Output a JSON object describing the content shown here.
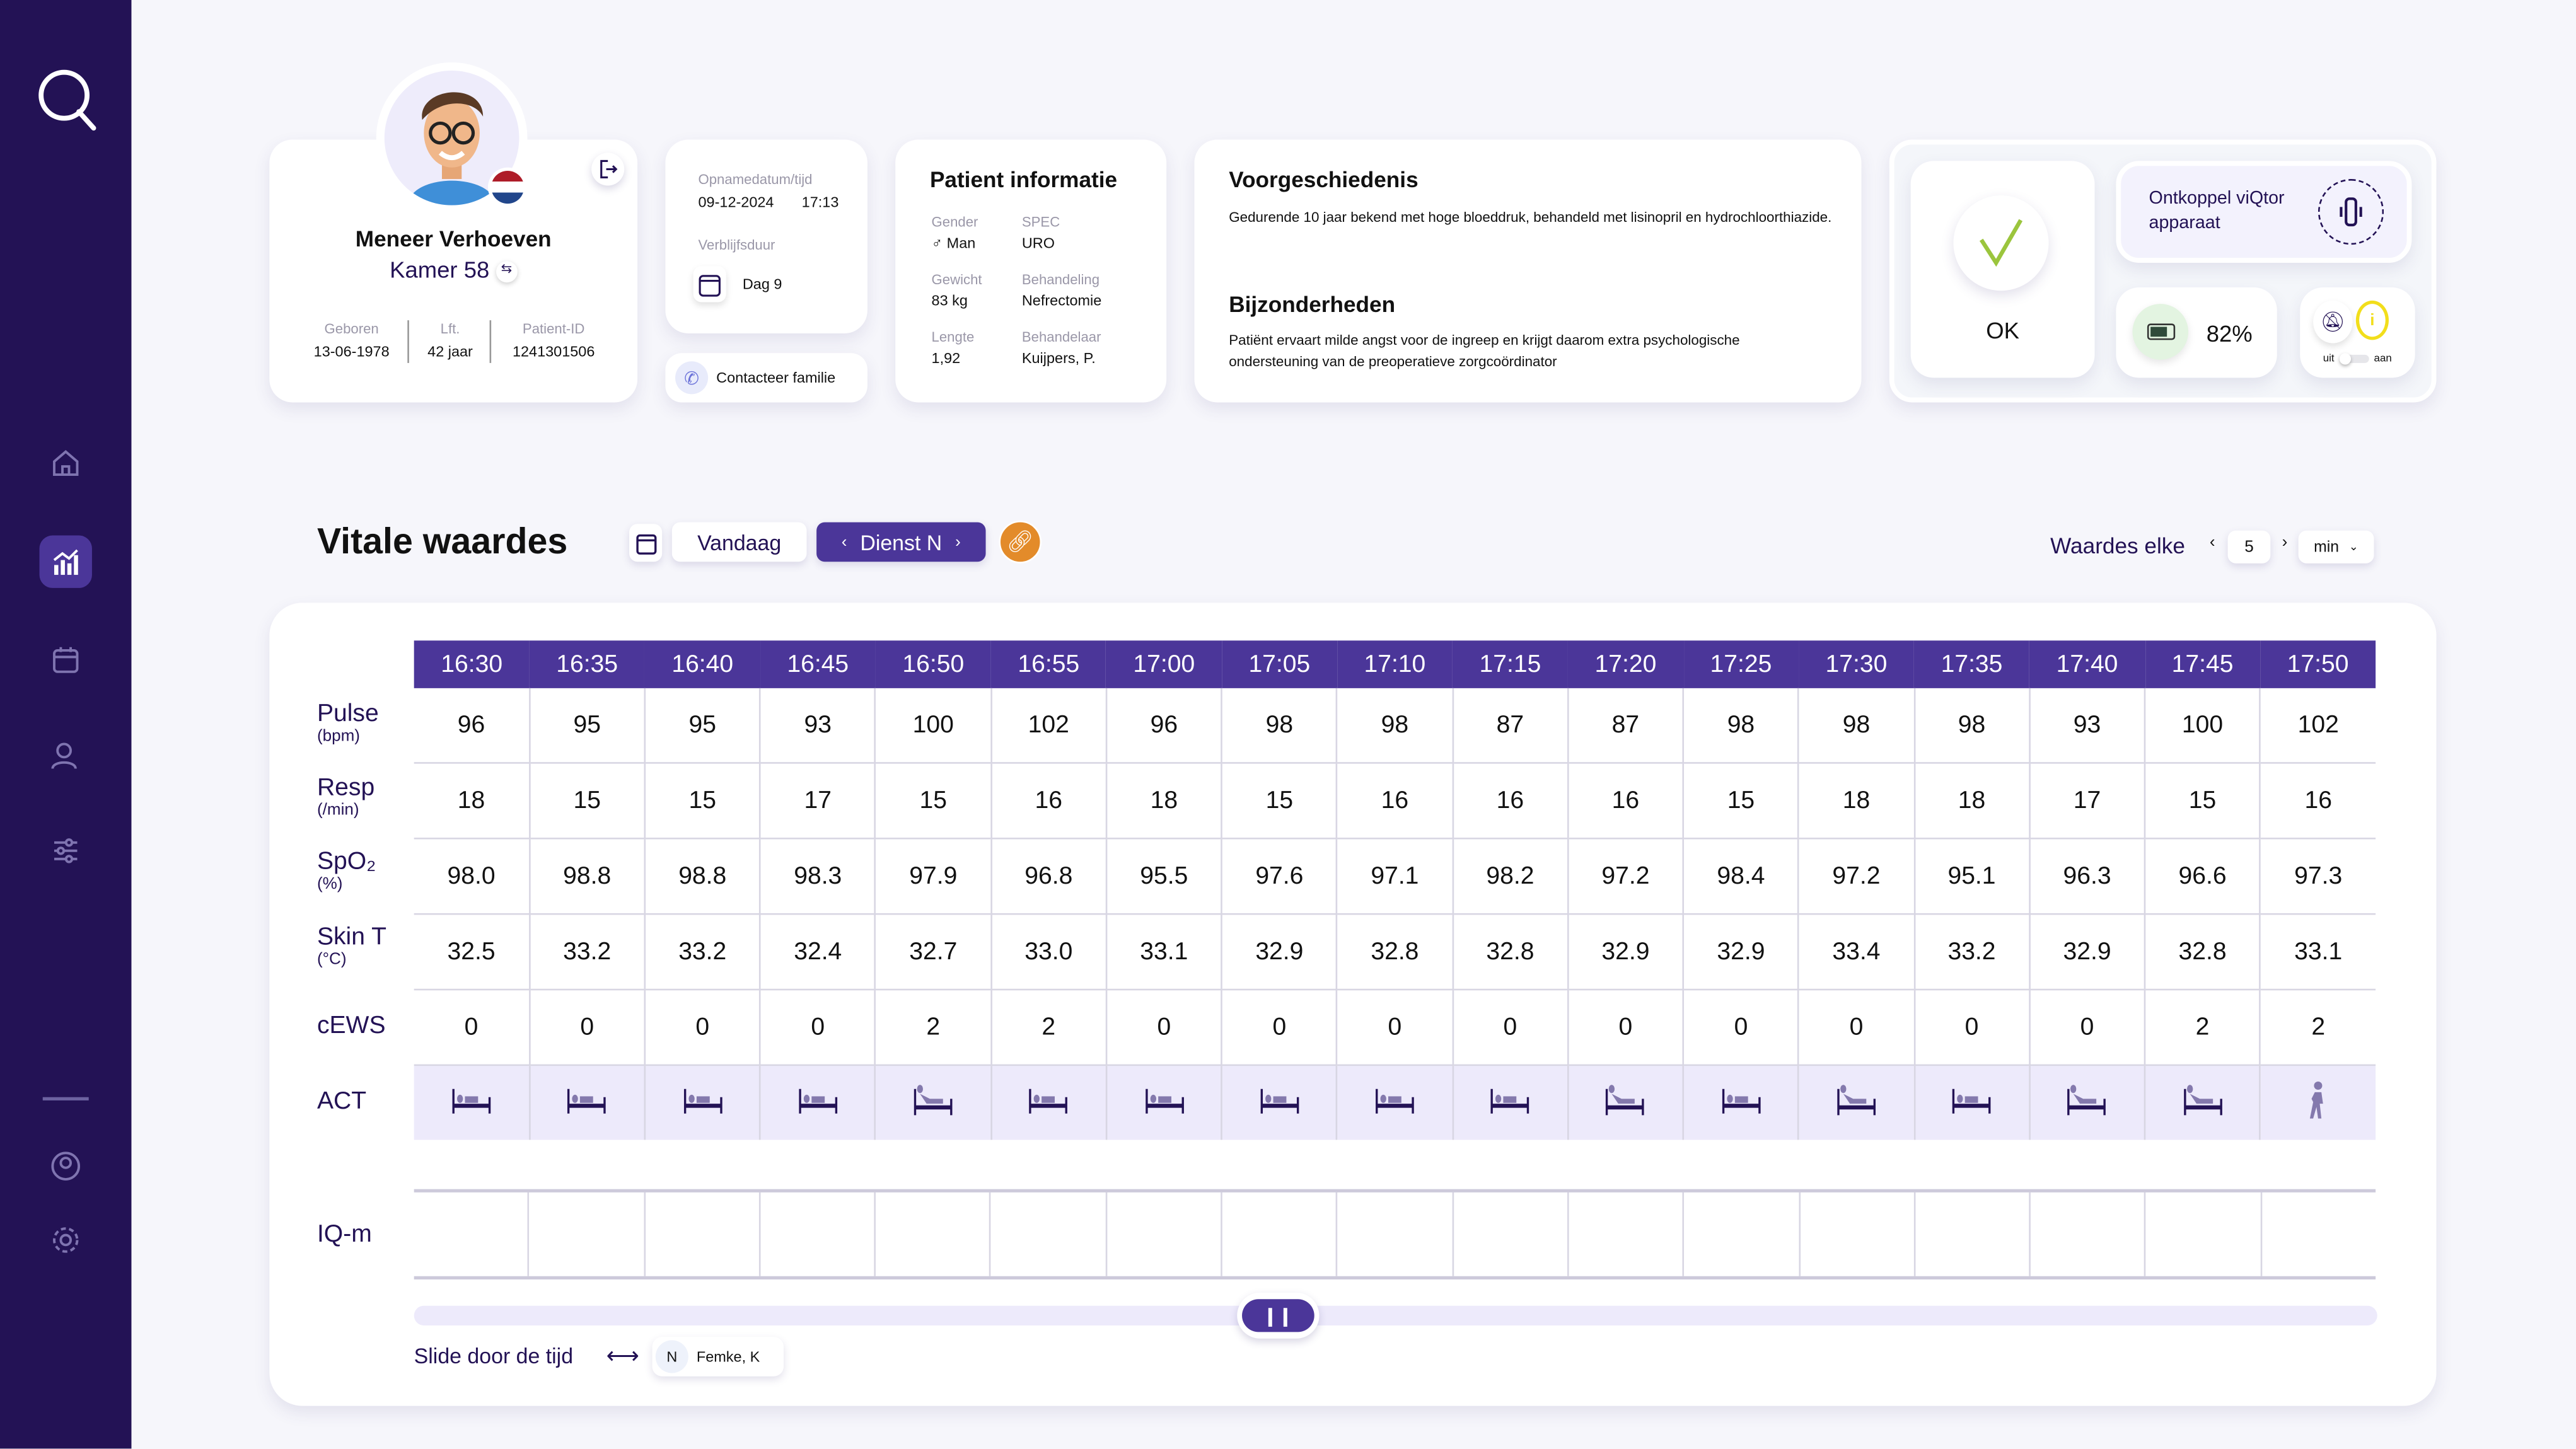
{
  "app": {
    "logo": "Q"
  },
  "sidebar": {
    "items": [
      {
        "name": "home",
        "icon": "home-icon"
      },
      {
        "name": "vitals",
        "icon": "chart-icon",
        "active": true
      },
      {
        "name": "calendar",
        "icon": "calendar-icon"
      },
      {
        "name": "patients",
        "icon": "user-icon"
      },
      {
        "name": "filters",
        "icon": "sliders-icon"
      },
      {
        "name": "profile",
        "icon": "user-circle-icon"
      },
      {
        "name": "settings",
        "icon": "gear-icon"
      }
    ]
  },
  "patient": {
    "name": "Meneer Verhoeven",
    "room": "Kamer 58",
    "born_label": "Geboren",
    "born": "13-06-1978",
    "age_label": "Lft.",
    "age": "42 jaar",
    "id_label": "Patient-ID",
    "id": "1241301506"
  },
  "admission": {
    "date_label": "Opnamedatum/tijd",
    "date": "09-12-2024",
    "time": "17:13",
    "stay_label": "Verblijfsduur",
    "stay": "Dag 9",
    "contact_label": "Contacteer familie"
  },
  "info": {
    "title": "Patient informatie",
    "gender_label": "Gender",
    "gender": "♂ Man",
    "spec_label": "SPEC",
    "spec": "URO",
    "weight_label": "Gewicht",
    "weight": "83 kg",
    "treatment_label": "Behandeling",
    "treatment": "Nefrectomie",
    "length_label": "Lengte",
    "length": "1,92",
    "practitioner_label": "Behandelaar",
    "practitioner": "Kuijpers, P."
  },
  "history": {
    "title": "Voorgeschiedenis",
    "text": "Gedurende 10 jaar bekend met hoge bloeddruk, behandeld met lisinopril en hydrochloorthiazide.",
    "notes_title": "Bijzonderheden",
    "notes": "Patiënt ervaart milde angst voor de ingreep en krijgt daarom extra psychologische ondersteuning van de preoperatieve zorgcoördinator"
  },
  "device": {
    "status": "OK",
    "disconnect_label": "Ontkoppel viQtor apparaat",
    "battery": "82%",
    "battery_level": 82,
    "toggle_off": "uit",
    "toggle_on": "aan",
    "colors": {
      "ok": "#9bc53d",
      "battery_bg": "#e3f4e1",
      "alert": "#f2de1b"
    }
  },
  "vitals": {
    "title": "Vitale waardes",
    "today": "Vandaag",
    "shift": "Dienst N",
    "interval_label": "Waardes elke",
    "interval": "5",
    "unit": "min",
    "times": [
      "16:30",
      "16:35",
      "16:40",
      "16:45",
      "16:50",
      "16:55",
      "17:00",
      "17:05",
      "17:10",
      "17:15",
      "17:20",
      "17:25",
      "17:30",
      "17:35",
      "17:40",
      "17:45",
      "17:50"
    ],
    "rows": [
      {
        "label": "Pulse",
        "unit": "(bpm)",
        "values": [
          "96",
          "95",
          "95",
          "93",
          "100",
          "102",
          "96",
          "98",
          "98",
          "87",
          "87",
          "98",
          "98",
          "98",
          "93",
          "100",
          "102"
        ]
      },
      {
        "label": "Resp",
        "unit": "(/min)",
        "values": [
          "18",
          "15",
          "15",
          "17",
          "15",
          "16",
          "18",
          "15",
          "16",
          "16",
          "16",
          "15",
          "18",
          "18",
          "17",
          "15",
          "16"
        ]
      },
      {
        "label": "SpO₂",
        "unit": "(%)",
        "values": [
          "98.0",
          "98.8",
          "98.8",
          "98.3",
          "97.9",
          "96.8",
          "95.5",
          "97.6",
          "97.1",
          "98.2",
          "97.2",
          "98.4",
          "97.2",
          "95.1",
          "96.3",
          "96.6",
          "97.3"
        ]
      },
      {
        "label": "Skin T",
        "unit": "(°C)",
        "values": [
          "32.5",
          "33.2",
          "33.2",
          "32.4",
          "32.7",
          "33.0",
          "33.1",
          "32.9",
          "32.8",
          "32.8",
          "32.9",
          "32.9",
          "33.4",
          "33.2",
          "32.9",
          "32.8",
          "33.1"
        ]
      },
      {
        "label": "cEWS",
        "unit": "",
        "values": [
          "0",
          "0",
          "0",
          "0",
          "2",
          "2",
          "0",
          "0",
          "0",
          "0",
          "0",
          "0",
          "0",
          "0",
          "0",
          "2",
          "2"
        ]
      }
    ],
    "act_label": "ACT",
    "act": [
      "lying",
      "lying",
      "lying",
      "lying",
      "sitting",
      "lying",
      "lying",
      "lying",
      "lying",
      "lying",
      "sitting",
      "lying",
      "sitting",
      "lying",
      "sitting",
      "sitting",
      "walking"
    ],
    "iq_label": "IQ-m",
    "slider_position": 0.44,
    "slide_label": "Slide door de tijd",
    "nurse_initial": "N",
    "nurse": "Femke, K"
  }
}
